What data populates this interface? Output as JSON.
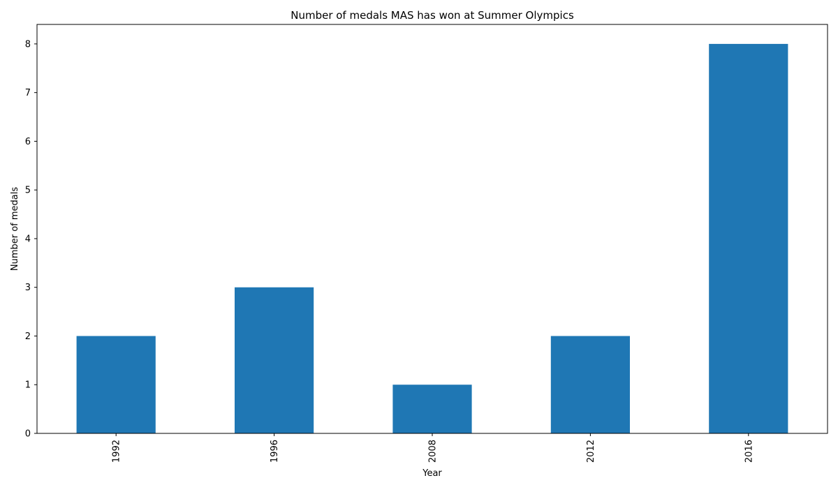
{
  "chart_data": {
    "type": "bar",
    "title": "Number of medals MAS has won at Summer Olympics",
    "xlabel": "Year",
    "ylabel": "Number of medals",
    "categories": [
      "1992",
      "1996",
      "2008",
      "2012",
      "2016"
    ],
    "values": [
      2,
      3,
      1,
      2,
      8
    ],
    "ylim": [
      0,
      8.4
    ],
    "yticks": [
      "0",
      "1",
      "2",
      "3",
      "4",
      "5",
      "6",
      "7",
      "8"
    ],
    "bar_color": "#1f77b4",
    "grid": false,
    "legend": "none"
  }
}
